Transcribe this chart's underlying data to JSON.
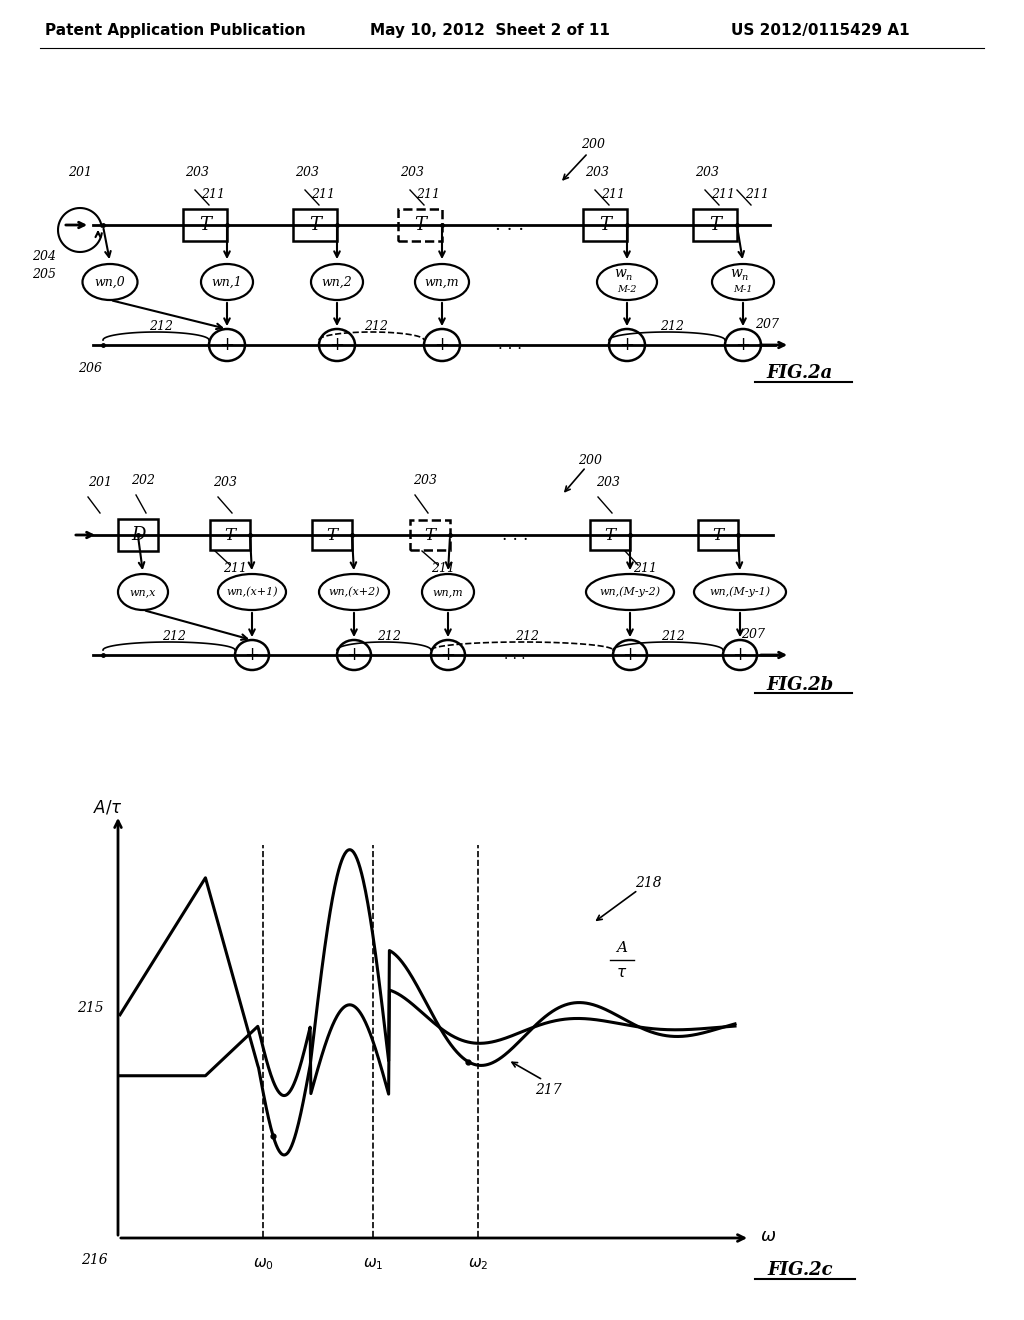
{
  "bg_color": "#ffffff",
  "header_left": "Patent Application Publication",
  "header_mid": "May 10, 2012  Sheet 2 of 11",
  "header_right": "US 2012/0115429 A1"
}
